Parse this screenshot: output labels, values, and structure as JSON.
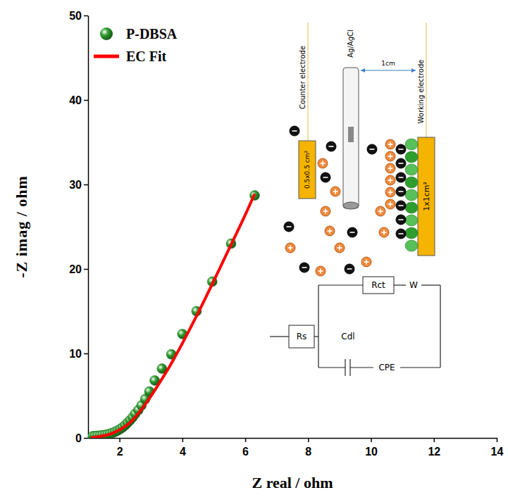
{
  "chart_data": {
    "type": "scatter",
    "xlabel": "Z real / ohm",
    "ylabel": "-Z imag / ohm",
    "xlim": [
      1,
      14
    ],
    "ylim": [
      0,
      50
    ],
    "xticks": [
      2,
      4,
      6,
      8,
      10,
      12,
      14
    ],
    "yticks": [
      0,
      10,
      20,
      30,
      40,
      50
    ],
    "grid": false,
    "legend": "top-left",
    "series": [
      {
        "name": "P-DBSA",
        "type": "scatter",
        "marker": "circle",
        "color": "#2e9e2e",
        "x": [
          1.15,
          1.22,
          1.3,
          1.38,
          1.46,
          1.54,
          1.62,
          1.7,
          1.78,
          1.86,
          1.94,
          2.02,
          2.1,
          2.18,
          2.26,
          2.34,
          2.42,
          2.5,
          2.6,
          2.7,
          2.82,
          2.95,
          3.12,
          3.35,
          3.65,
          4.0,
          4.45,
          4.95,
          5.55,
          6.3
        ],
        "values": [
          0.2,
          0.22,
          0.25,
          0.28,
          0.32,
          0.36,
          0.42,
          0.5,
          0.6,
          0.72,
          0.88,
          1.05,
          1.25,
          1.5,
          1.8,
          2.1,
          2.45,
          2.85,
          3.3,
          3.85,
          4.6,
          5.5,
          6.8,
          8.2,
          9.9,
          12.3,
          15.0,
          18.5,
          23.0,
          28.7
        ]
      },
      {
        "name": "EC Fit",
        "type": "line",
        "line_style": "solid",
        "color": "#ff0000",
        "x": [
          1.1,
          1.4,
          1.7,
          2.0,
          2.3,
          2.6,
          2.9,
          3.2,
          3.6,
          4.0,
          4.5,
          5.0,
          5.5,
          6.0,
          6.3
        ],
        "values": [
          0.05,
          0.2,
          0.45,
          0.95,
          1.7,
          2.9,
          4.4,
          6.1,
          8.5,
          11.2,
          14.8,
          18.6,
          22.5,
          26.4,
          28.9
        ]
      }
    ],
    "annotations": [
      "Counter electrode",
      "Ag/AgCl",
      "1cm",
      "Working electrode",
      "0.5x0.5 cm²",
      "1x1cm²",
      "Rs",
      "Rct",
      "W",
      "Cdl",
      "CPE"
    ]
  }
}
